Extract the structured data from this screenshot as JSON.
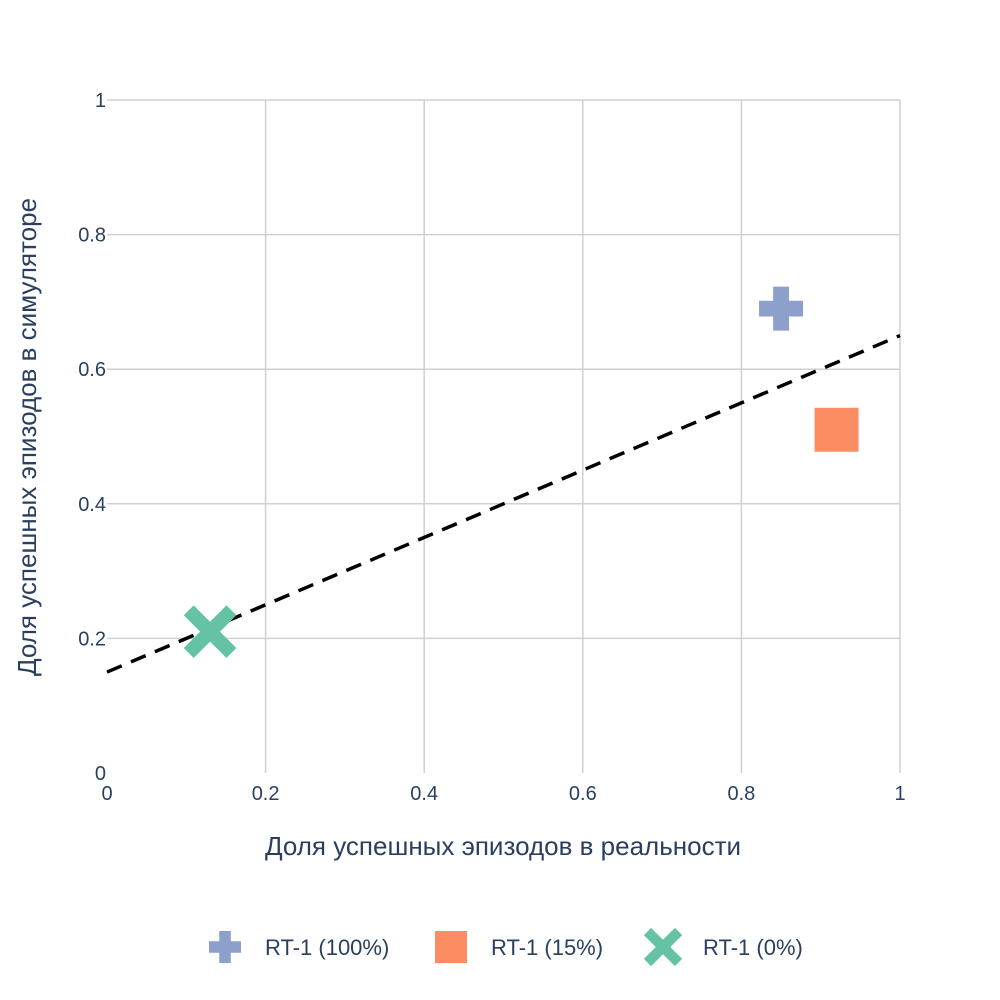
{
  "chart_data": {
    "type": "scatter",
    "xlabel": "Доля успешных эпизодов в реальности",
    "ylabel": "Доля успешных эпизодов в симуляторе",
    "xlim": [
      0,
      1
    ],
    "ylim": [
      0,
      1
    ],
    "x_ticks": [
      0,
      0.2,
      0.4,
      0.6,
      0.8,
      1
    ],
    "y_ticks": [
      0,
      0.2,
      0.4,
      0.6,
      0.8,
      1
    ],
    "x_tick_labels": [
      "0",
      "0.2",
      "0.4",
      "0.6",
      "0.8",
      "1"
    ],
    "y_tick_labels": [
      "0",
      "0.2",
      "0.4",
      "0.6",
      "0.8",
      "1"
    ],
    "grid": true,
    "legend_position": "bottom",
    "series": [
      {
        "name": "RT-1 (100%)",
        "x": [
          0.85
        ],
        "y": [
          0.69
        ],
        "marker": "cross",
        "color": "#8da0cb"
      },
      {
        "name": "RT-1 (15%)",
        "x": [
          0.92
        ],
        "y": [
          0.51
        ],
        "marker": "square",
        "color": "#fc8d62"
      },
      {
        "name": "RT-1 (0%)",
        "x": [
          0.13
        ],
        "y": [
          0.21
        ],
        "marker": "x",
        "color": "#66c2a5"
      }
    ],
    "fit_line": {
      "x": [
        0,
        1
      ],
      "y": [
        0.15,
        0.65
      ],
      "style": "dashed",
      "color": "#000000"
    }
  }
}
